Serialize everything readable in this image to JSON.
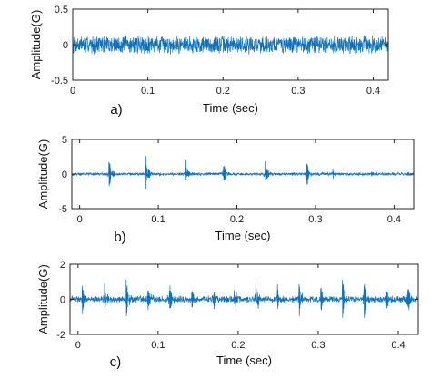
{
  "colors": {
    "signal": "#0f72bd",
    "axis": "#262626",
    "background": "#ffffff"
  },
  "chart_data": [
    {
      "type": "line",
      "panel_label": "a)",
      "xlabel": "Time (sec)",
      "ylabel": "Amplitude(G)",
      "xlim": [
        0,
        0.42
      ],
      "ylim": [
        -0.5,
        0.5
      ],
      "x_ticks": [
        "0",
        "0.1",
        "0.2",
        "0.3",
        "0.4"
      ],
      "y_ticks": [
        "0.5",
        "0",
        "-0.5"
      ],
      "grid": false,
      "series": [
        {
          "signal": "dense broadband vibration",
          "peak_amplitude": 0.14,
          "impulse_times": []
        }
      ]
    },
    {
      "type": "line",
      "panel_label": "b)",
      "xlabel": "Time (sec)",
      "ylabel": "Amplitude(G)",
      "xlim": [
        -0.01,
        0.425
      ],
      "ylim": [
        -5,
        5
      ],
      "x_ticks": [
        "0",
        "0.1",
        "0.2",
        "0.3",
        "0.4"
      ],
      "y_ticks": [
        "5",
        "0",
        "-5"
      ],
      "grid": false,
      "series": [
        {
          "signal": "periodic impulses with decaying ringing",
          "noise_amplitude": 0.25,
          "impulse_times": [
            0.037,
            0.084,
            0.135,
            0.182,
            0.236,
            0.288,
            0.322,
            0.37,
            0.415
          ],
          "impulse_amplitudes": [
            3.1,
            3.4,
            2.4,
            3.2,
            3.0,
            3.2,
            1.1,
            0.8,
            0.7
          ]
        }
      ]
    },
    {
      "type": "line",
      "panel_label": "c)",
      "xlabel": "Time (sec)",
      "ylabel": "Amplitude(G)",
      "xlim": [
        -0.01,
        0.425
      ],
      "ylim": [
        -2,
        2
      ],
      "x_ticks": [
        "0",
        "0.1",
        "0.2",
        "0.3",
        "0.4"
      ],
      "y_ticks": [
        "2",
        "0",
        "-2"
      ],
      "grid": false,
      "series": [
        {
          "signal": "noisy periodic impulses",
          "noise_amplitude": 0.22,
          "impulse_times": [
            0.005,
            0.033,
            0.06,
            0.087,
            0.114,
            0.141,
            0.168,
            0.195,
            0.222,
            0.249,
            0.276,
            0.303,
            0.33,
            0.357,
            0.384,
            0.411
          ],
          "impulse_amplitudes": [
            1.2,
            1.0,
            1.3,
            0.9,
            1.4,
            1.1,
            1.3,
            1.0,
            1.5,
            1.1,
            1.4,
            1.2,
            1.6,
            1.7,
            1.3,
            1.6
          ]
        }
      ]
    }
  ]
}
